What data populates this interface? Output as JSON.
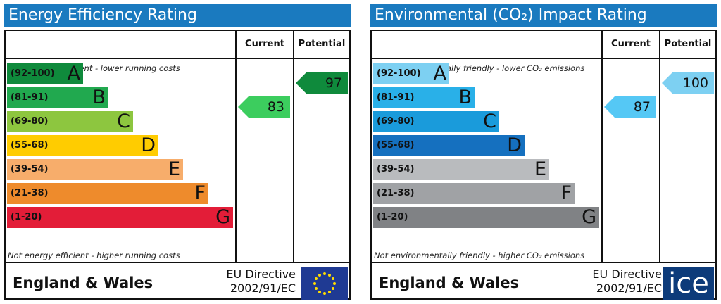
{
  "chart_data": [
    {
      "type": "bar",
      "title": "Energy Efficiency Rating",
      "column_headers": [
        "Current",
        "Potential"
      ],
      "top_note": "Very energy efficient - lower running costs",
      "bottom_note": "Not energy efficient - higher running costs",
      "bands": [
        {
          "range": "(92-100)",
          "letter": "A",
          "color": "#0f8a3c",
          "min": 92,
          "max": 100
        },
        {
          "range": "(81-91)",
          "letter": "B",
          "color": "#21a94f",
          "min": 81,
          "max": 91
        },
        {
          "range": "(69-80)",
          "letter": "C",
          "color": "#8dc63f",
          "min": 69,
          "max": 80
        },
        {
          "range": "(55-68)",
          "letter": "D",
          "color": "#ffcc00",
          "min": 55,
          "max": 68
        },
        {
          "range": "(39-54)",
          "letter": "E",
          "color": "#f7ad6b",
          "min": 39,
          "max": 54
        },
        {
          "range": "(21-38)",
          "letter": "F",
          "color": "#ee8b2c",
          "min": 21,
          "max": 38
        },
        {
          "range": "(1-20)",
          "letter": "G",
          "color": "#e31d38",
          "min": 1,
          "max": 20
        }
      ],
      "current": {
        "value": 83,
        "band": "B",
        "color": "#3ccd5e"
      },
      "potential": {
        "value": 97,
        "band": "A",
        "color": "#0f8a3c"
      },
      "region": "England & Wales",
      "directive": [
        "EU Directive",
        "2002/91/EC"
      ]
    },
    {
      "type": "bar",
      "title": "Environmental (CO₂) Impact Rating",
      "column_headers": [
        "Current",
        "Potential"
      ],
      "top_note": "Very environmentally friendly - lower CO₂ emissions",
      "bottom_note": "Not environmentally friendly - higher CO₂ emissions",
      "bands": [
        {
          "range": "(92-100)",
          "letter": "A",
          "color": "#7dd0f2",
          "min": 92,
          "max": 100
        },
        {
          "range": "(81-91)",
          "letter": "B",
          "color": "#29b0e8",
          "min": 81,
          "max": 91
        },
        {
          "range": "(69-80)",
          "letter": "C",
          "color": "#1a9bdb",
          "min": 69,
          "max": 80
        },
        {
          "range": "(55-68)",
          "letter": "D",
          "color": "#1570bf",
          "min": 55,
          "max": 68
        },
        {
          "range": "(39-54)",
          "letter": "E",
          "color": "#b9bbbe",
          "min": 39,
          "max": 54
        },
        {
          "range": "(21-38)",
          "letter": "F",
          "color": "#a0a2a5",
          "min": 21,
          "max": 38
        },
        {
          "range": "(1-20)",
          "letter": "G",
          "color": "#808285",
          "min": 1,
          "max": 20
        }
      ],
      "current": {
        "value": 87,
        "band": "B",
        "color": "#55c8f5"
      },
      "potential": {
        "value": 100,
        "band": "A",
        "color": "#7dd0f2"
      },
      "region": "England & Wales",
      "directive": [
        "EU Directive",
        "2002/91/EC"
      ]
    }
  ],
  "logo": {
    "text": "ice",
    "color": "#0d3b7a"
  },
  "icons": {
    "eu_flag": "eu-flag-icon"
  }
}
